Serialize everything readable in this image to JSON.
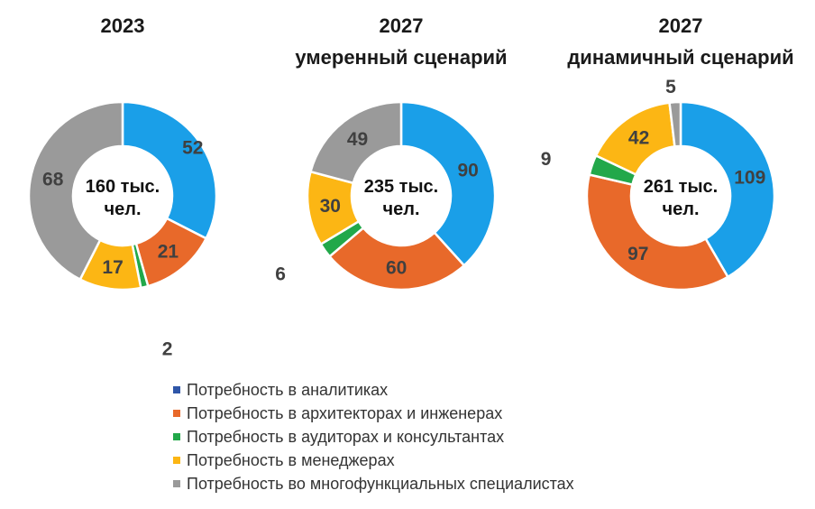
{
  "chart_data": {
    "type": "donut",
    "series_names": [
      "Потребность в аналитиках",
      "Потребность в архитекторах и инженерах",
      "Потребность в аудиторах и консультантах",
      "Потребность в менеджерах",
      "Потребность во многофункциальных специалистах"
    ],
    "colors": [
      "#1a9fe8",
      "#e8692a",
      "#22a84a",
      "#fcb614",
      "#9a9a9a"
    ],
    "legend_colors": [
      "#2f56a8",
      "#e8692a",
      "#22a84a",
      "#fcb614",
      "#9a9a9a"
    ],
    "legend_position": "bottom",
    "charts": [
      {
        "title_lines": [
          "2023"
        ],
        "center_lines": [
          "160 тыс.",
          "чел."
        ],
        "values": [
          52,
          21,
          2,
          17,
          68
        ]
      },
      {
        "title_lines": [
          "2027",
          "умеренный сценарий"
        ],
        "center_lines": [
          "235 тыс.",
          "чел."
        ],
        "values": [
          90,
          60,
          6,
          30,
          49
        ]
      },
      {
        "title_lines": [
          "2027",
          "динамичный сценарий"
        ],
        "center_lines": [
          "261 тыс.",
          "чел."
        ],
        "values": [
          109,
          97,
          9,
          42,
          5
        ]
      }
    ]
  }
}
